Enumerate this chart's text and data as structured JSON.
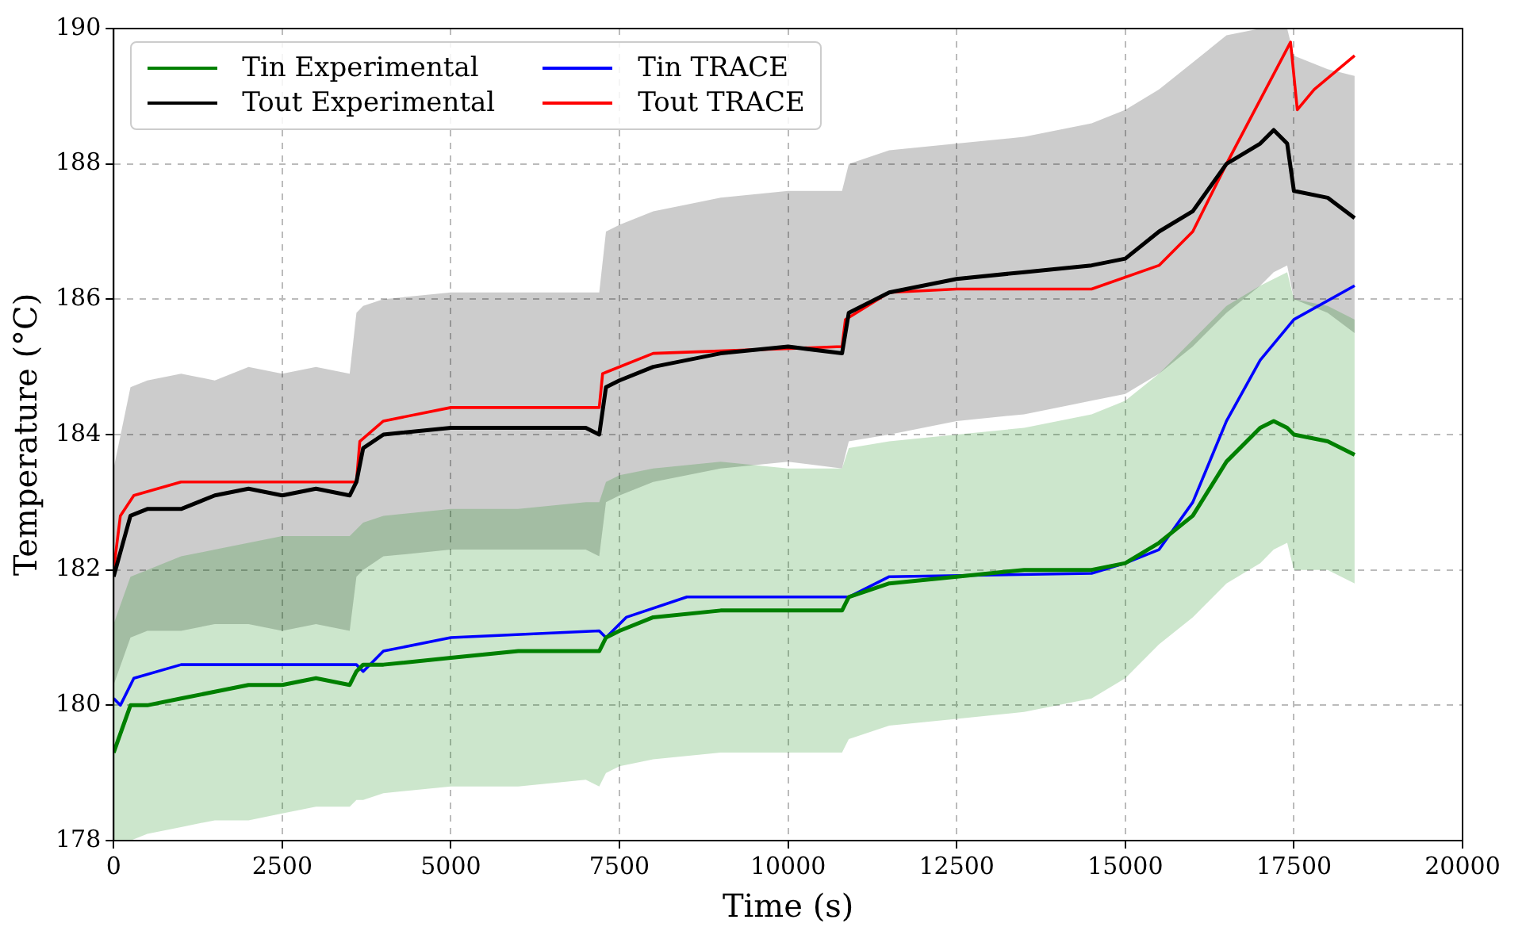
{
  "chart_data": {
    "type": "line",
    "xlabel": "Time (s)",
    "ylabel": "Temperature (°C)",
    "x": [
      0,
      250,
      500,
      1000,
      1500,
      2000,
      2500,
      3000,
      3500,
      3600,
      3700,
      4000,
      5000,
      6000,
      7000,
      7200,
      7300,
      7500,
      8000,
      9000,
      10000,
      10800,
      10900,
      11500,
      12500,
      13500,
      14500,
      15000,
      15500,
      16000,
      16500,
      17000,
      17200,
      17400,
      17500,
      18000,
      18400
    ],
    "series": [
      {
        "name": "Tin Experimental",
        "color": "#008000",
        "values": [
          179.3,
          180.0,
          180.0,
          180.1,
          180.2,
          180.3,
          180.3,
          180.4,
          180.3,
          180.5,
          180.6,
          180.6,
          180.7,
          180.8,
          180.8,
          180.8,
          181.0,
          181.1,
          181.3,
          181.4,
          181.4,
          181.4,
          181.6,
          181.8,
          181.9,
          182.0,
          182.0,
          182.1,
          182.4,
          182.8,
          183.6,
          184.1,
          184.2,
          184.1,
          184.0,
          183.9,
          183.7
        ],
        "lower": [
          178.0,
          178.0,
          178.1,
          178.2,
          178.3,
          178.3,
          178.4,
          178.5,
          178.5,
          178.6,
          178.6,
          178.7,
          178.8,
          178.8,
          178.9,
          178.8,
          179.0,
          179.1,
          179.2,
          179.3,
          179.3,
          179.3,
          179.5,
          179.7,
          179.8,
          179.9,
          180.1,
          180.4,
          180.9,
          181.3,
          181.8,
          182.1,
          182.3,
          182.4,
          182.0,
          182.0,
          181.8
        ],
        "upper": [
          181.2,
          181.9,
          182.0,
          182.2,
          182.3,
          182.4,
          182.5,
          182.5,
          182.5,
          182.6,
          182.7,
          182.8,
          182.9,
          182.9,
          183.0,
          183.0,
          183.3,
          183.4,
          183.5,
          183.6,
          183.5,
          183.5,
          183.8,
          183.9,
          184.0,
          184.1,
          184.3,
          184.5,
          184.9,
          185.4,
          185.9,
          186.2,
          186.3,
          186.4,
          186.0,
          185.9,
          185.7
        ]
      },
      {
        "name": "Tout Experimental",
        "color": "#000000",
        "values": [
          181.9,
          182.8,
          182.9,
          182.9,
          183.1,
          183.2,
          183.1,
          183.2,
          183.1,
          183.3,
          183.8,
          184.0,
          184.1,
          184.1,
          184.1,
          184.0,
          184.7,
          184.8,
          185.0,
          185.2,
          185.3,
          185.2,
          185.8,
          186.1,
          186.3,
          186.4,
          186.5,
          186.6,
          187.0,
          187.3,
          188.0,
          188.3,
          188.5,
          188.3,
          187.6,
          187.5,
          187.2
        ],
        "lower": [
          180.3,
          181.0,
          181.1,
          181.1,
          181.2,
          181.2,
          181.1,
          181.2,
          181.1,
          181.9,
          182.0,
          182.2,
          182.3,
          182.3,
          182.3,
          182.2,
          183.0,
          183.1,
          183.3,
          183.5,
          183.6,
          183.5,
          183.9,
          184.0,
          184.2,
          184.3,
          184.5,
          184.6,
          184.9,
          185.3,
          185.8,
          186.2,
          186.4,
          186.5,
          186.0,
          185.8,
          185.5
        ],
        "upper": [
          183.5,
          184.7,
          184.8,
          184.9,
          184.8,
          185.0,
          184.9,
          185.0,
          184.9,
          185.8,
          185.9,
          186.0,
          186.1,
          186.1,
          186.1,
          186.1,
          187.0,
          187.1,
          187.3,
          187.5,
          187.6,
          187.6,
          188.0,
          188.2,
          188.3,
          188.4,
          188.6,
          188.8,
          189.1,
          189.5,
          189.9,
          190.0,
          190.0,
          190.0,
          189.6,
          189.4,
          189.3
        ]
      },
      {
        "name": "Tin TRACE",
        "color": "#0000ff",
        "x": [
          0,
          100,
          300,
          1000,
          3600,
          3700,
          4000,
          5000,
          7200,
          7300,
          7600,
          8500,
          10800,
          10900,
          11500,
          14500,
          15000,
          15500,
          16000,
          16500,
          17000,
          17500,
          18400
        ],
        "values": [
          180.1,
          180.0,
          180.4,
          180.6,
          180.6,
          180.5,
          180.8,
          181.0,
          181.1,
          181.0,
          181.3,
          181.6,
          181.6,
          181.6,
          181.9,
          181.95,
          182.1,
          182.3,
          183.0,
          184.2,
          185.1,
          185.7,
          186.2
        ]
      },
      {
        "name": "Tout TRACE",
        "color": "#ff0000",
        "x": [
          0,
          100,
          300,
          1000,
          3600,
          3650,
          4000,
          5000,
          7200,
          7250,
          8000,
          10800,
          10850,
          11500,
          12500,
          14500,
          15500,
          16000,
          16500,
          17450,
          17550,
          17800,
          18400
        ],
        "values": [
          182.0,
          182.8,
          183.1,
          183.3,
          183.3,
          183.9,
          184.2,
          184.4,
          184.4,
          184.9,
          185.2,
          185.3,
          185.7,
          186.1,
          186.15,
          186.15,
          186.5,
          187.0,
          188.0,
          189.8,
          188.8,
          189.1,
          189.6
        ]
      }
    ],
    "xlim": [
      0,
      20000
    ],
    "xticks": [
      0,
      2500,
      5000,
      7500,
      10000,
      12500,
      15000,
      17500,
      20000
    ],
    "ylim": [
      178,
      190
    ],
    "yticks": [
      178,
      180,
      182,
      184,
      186,
      188,
      190
    ],
    "grid": true,
    "legend": "top left",
    "line_style": "solid",
    "marker": "none"
  }
}
